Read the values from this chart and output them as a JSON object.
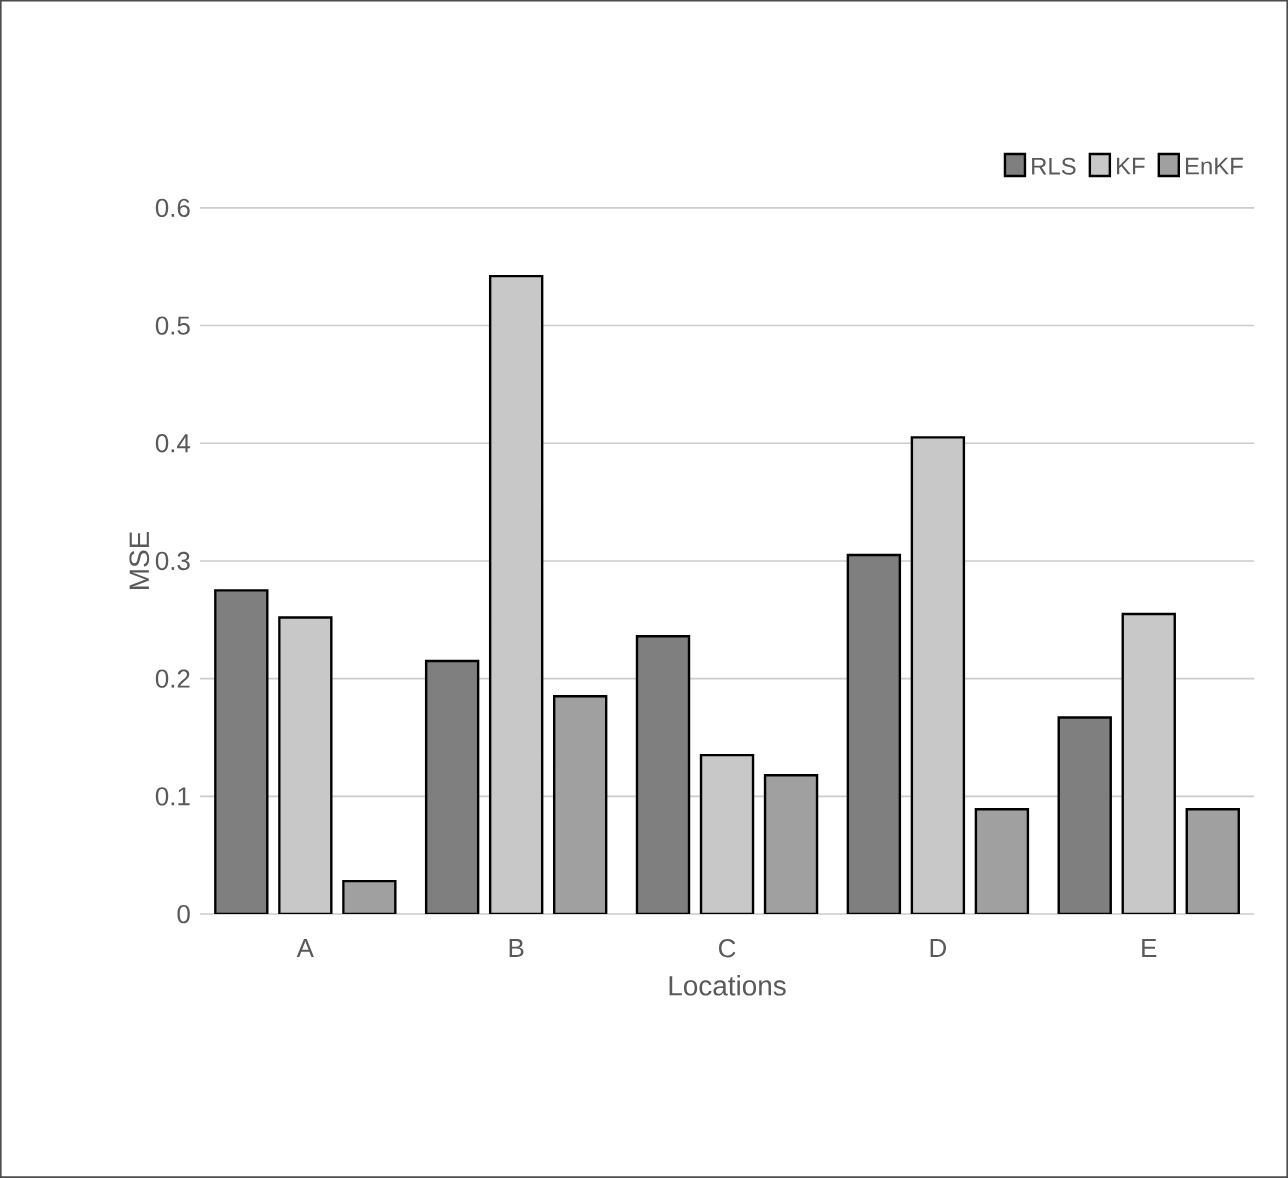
{
  "chart_data": {
    "type": "bar",
    "xlabel": "Locations",
    "ylabel": "MSE",
    "categories": [
      "A",
      "B",
      "C",
      "D",
      "E"
    ],
    "series": [
      {
        "name": "RLS",
        "color": "#7f7f7f",
        "values": [
          0.275,
          0.215,
          0.236,
          0.305,
          0.167
        ]
      },
      {
        "name": "KF",
        "color": "#c8c8c8",
        "values": [
          0.252,
          0.542,
          0.135,
          0.405,
          0.255
        ]
      },
      {
        "name": "EnKF",
        "color": "#a0a0a0",
        "values": [
          0.028,
          0.185,
          0.118,
          0.089,
          0.089
        ]
      }
    ],
    "ylim": [
      0,
      0.6
    ],
    "yticks": [
      0,
      0.1,
      0.2,
      0.3,
      0.4,
      0.5,
      0.6
    ],
    "grid": "y",
    "legend": "top right"
  }
}
